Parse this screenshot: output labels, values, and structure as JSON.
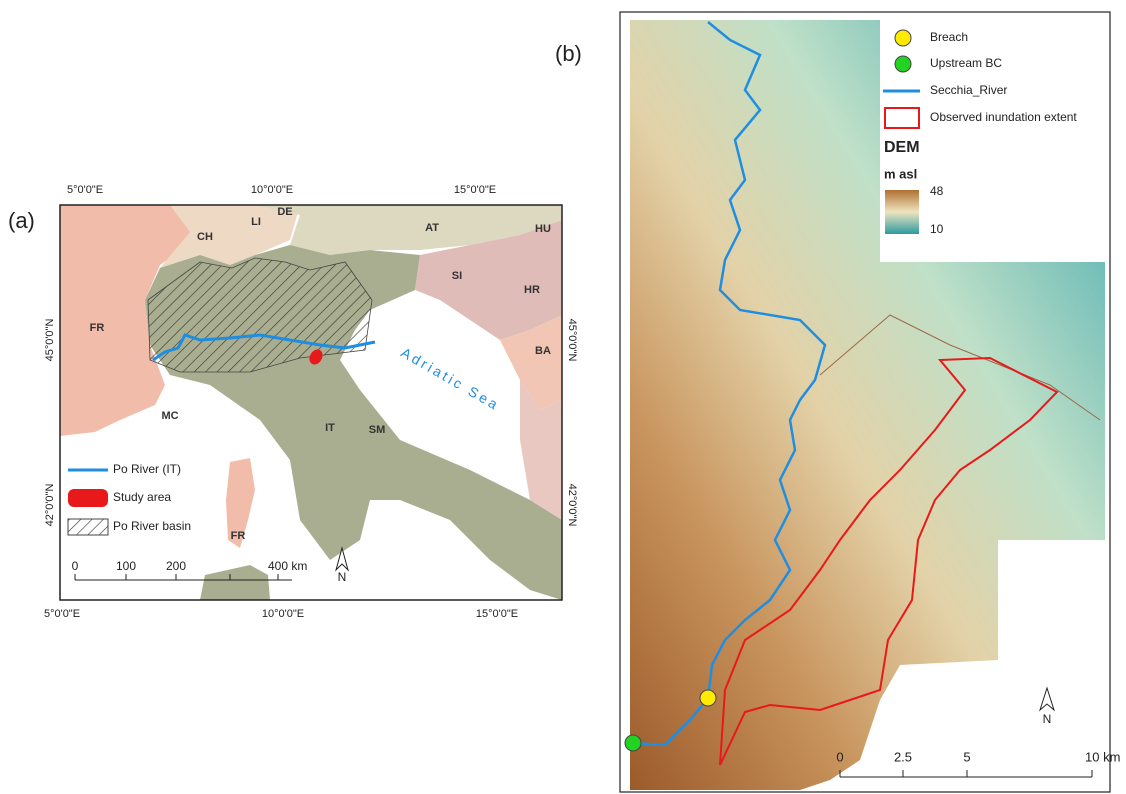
{
  "panel_a": {
    "label": "(a)",
    "graticule_top": [
      "5°0'0\"E",
      "10°0'0\"E",
      "15°0'0\"E"
    ],
    "graticule_bottom": [
      "5°0'0\"E",
      "10°0'0\"E",
      "15°0'0\"E"
    ],
    "graticule_left": [
      "45°0'0\"N",
      "42°0'0\"N"
    ],
    "graticule_right": [
      "45°0'0\"N",
      "42°0'0\"N"
    ],
    "countries": [
      "FR",
      "CH",
      "LI",
      "DE",
      "AT",
      "HU",
      "SI",
      "HR",
      "BA",
      "IT",
      "SM",
      "MC",
      "FR"
    ],
    "sea": "Adriatic Sea",
    "legend": [
      "Po River (IT)",
      "Study area",
      "Po River basin"
    ],
    "scale_bar": [
      0,
      100,
      200,
      "400 km"
    ],
    "north": "N"
  },
  "panel_b": {
    "label": "(b)",
    "legend": [
      "Breach",
      "Upstream BC",
      "Secchia_River",
      "Observed inundation extent"
    ],
    "dem_title": "DEM",
    "dem_unit": "m asl",
    "dem_range": [
      48,
      10
    ],
    "scale_bar": [
      0,
      2.5,
      5,
      "10 km"
    ],
    "north": "N"
  }
}
